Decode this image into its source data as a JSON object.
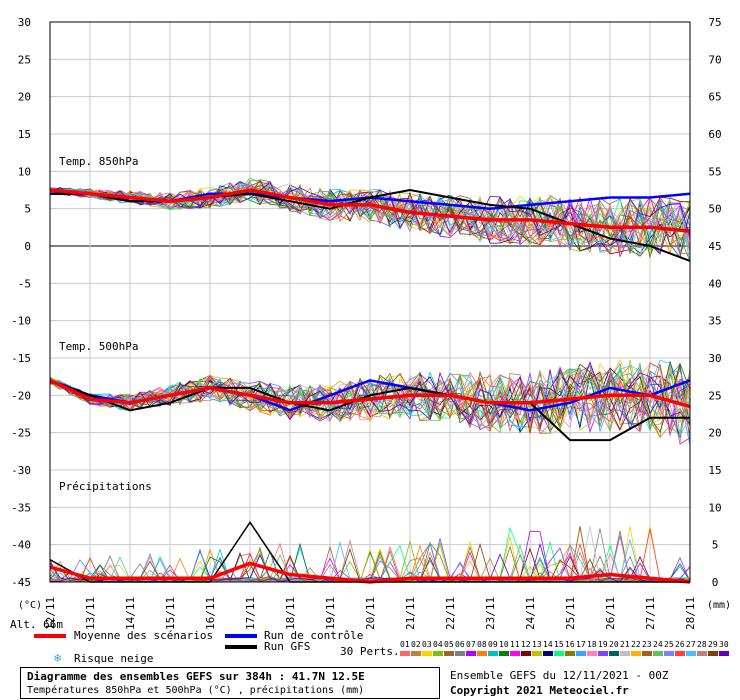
{
  "chart_data": {
    "type": "line",
    "title": "Diagramme des ensembles GEFS sur 384h : 41.7N 12.5E",
    "subtitle": "Températures 850hPa et 500hPa (°C) , précipitations (mm)",
    "run_info": "Ensemble GEFS du 12/11/2021 - 00Z",
    "copyright": "Copyright 2021 Meteociel.fr",
    "xlabel_left": "(°C)",
    "xlabel_right": "(mm)",
    "altitude_label": "Alt. 66m",
    "x_dates": [
      "12/11",
      "13/11",
      "14/11",
      "15/11",
      "16/11",
      "17/11",
      "18/11",
      "19/11",
      "20/11",
      "21/11",
      "22/11",
      "23/11",
      "24/11",
      "25/11",
      "26/11",
      "27/11",
      "28/11"
    ],
    "y_left_ticks": [
      30,
      25,
      20,
      15,
      10,
      5,
      0,
      -5,
      -10,
      -15,
      -20,
      -25,
      -30,
      -35,
      -40,
      -45
    ],
    "y_left_range": [
      -45,
      30
    ],
    "y_right_ticks": [
      75,
      70,
      65,
      60,
      55,
      50,
      45,
      40,
      35,
      30,
      25,
      20,
      15,
      10,
      5,
      0
    ],
    "panel_labels": {
      "t850": "Temp. 850hPa",
      "t500": "Temp. 500hPa",
      "precip": "Précipitations"
    },
    "legend": {
      "mean": "Moyenne des scénarios",
      "control": "Run de contrôle",
      "gfs": "Run GFS",
      "snow": "Risque neige",
      "perts": "30 Perts."
    },
    "colors": {
      "mean": "#ff0000",
      "control": "#0000ff",
      "gfs": "#000000",
      "grid": "#c8c8c8"
    },
    "series": [
      {
        "name": "Moyenne 850hPa",
        "values": [
          7.5,
          7,
          6.5,
          6,
          6.5,
          7.5,
          6.5,
          5.5,
          5.5,
          4.5,
          4,
          3.5,
          3.5,
          3,
          2.5,
          2.5,
          2
        ]
      },
      {
        "name": "Moyenne 500hPa",
        "values": [
          -18,
          -20.5,
          -21,
          -20,
          -19,
          -20,
          -21,
          -21,
          -20.5,
          -20,
          -20,
          -21,
          -21,
          -20.5,
          -20,
          -20,
          -21.5
        ]
      },
      {
        "name": "Moyenne précipitations",
        "values": [
          2,
          0.5,
          0.5,
          0.5,
          0.5,
          2.5,
          1,
          0.5,
          0,
          0.5,
          0.5,
          0.5,
          0.5,
          0.5,
          1,
          0.5,
          0
        ]
      },
      {
        "name": "Contrôle 850hPa",
        "values": [
          7,
          7,
          6,
          6,
          7,
          7,
          6.5,
          6,
          6.5,
          6,
          5.5,
          5,
          5.5,
          6,
          6.5,
          6.5,
          7
        ]
      },
      {
        "name": "Contrôle 500hPa",
        "values": [
          -18,
          -20,
          -21,
          -20,
          -19,
          -20,
          -22,
          -20,
          -18,
          -19,
          -20,
          -21,
          -22,
          -21,
          -19,
          -20,
          -18
        ]
      },
      {
        "name": "GFS 850hPa",
        "values": [
          7,
          7,
          6,
          6,
          6.5,
          7,
          6,
          5,
          6.5,
          7.5,
          6.5,
          5.5,
          5,
          3,
          1,
          0,
          -2
        ]
      },
      {
        "name": "GFS 500hPa",
        "values": [
          -18,
          -20,
          -22,
          -21,
          -19,
          -19,
          -21,
          -22,
          -20,
          -19,
          -20,
          -21,
          -21,
          -26,
          -26,
          -23,
          -23
        ]
      },
      {
        "name": "GFS précipitations",
        "values": [
          3,
          0,
          0,
          0,
          0,
          8,
          0,
          0,
          0,
          0,
          0,
          0,
          0,
          0,
          0,
          0,
          0
        ]
      }
    ]
  },
  "pert_labels": [
    "01",
    "02",
    "03",
    "04",
    "05",
    "06",
    "07",
    "08",
    "09",
    "10",
    "11",
    "12",
    "13",
    "14",
    "15",
    "16",
    "17",
    "18",
    "19",
    "20",
    "21",
    "22",
    "23",
    "24",
    "25",
    "26",
    "27",
    "28",
    "29",
    "30"
  ],
  "pert_colors": [
    "#ff6666",
    "#c08040",
    "#ffd000",
    "#80c000",
    "#996633",
    "#808080",
    "#b000ff",
    "#ff8000",
    "#00c0c0",
    "#008000",
    "#ff00ff",
    "#800000",
    "#c0c000",
    "#000080",
    "#00ff80",
    "#808000",
    "#40a0ff",
    "#ff80c0",
    "#8040ff",
    "#006060",
    "#c0c0c0",
    "#ffb000",
    "#a06020",
    "#60c060",
    "#8080ff",
    "#ff4040",
    "#40c0ff",
    "#c08080",
    "#804000",
    "#6000c0"
  ]
}
